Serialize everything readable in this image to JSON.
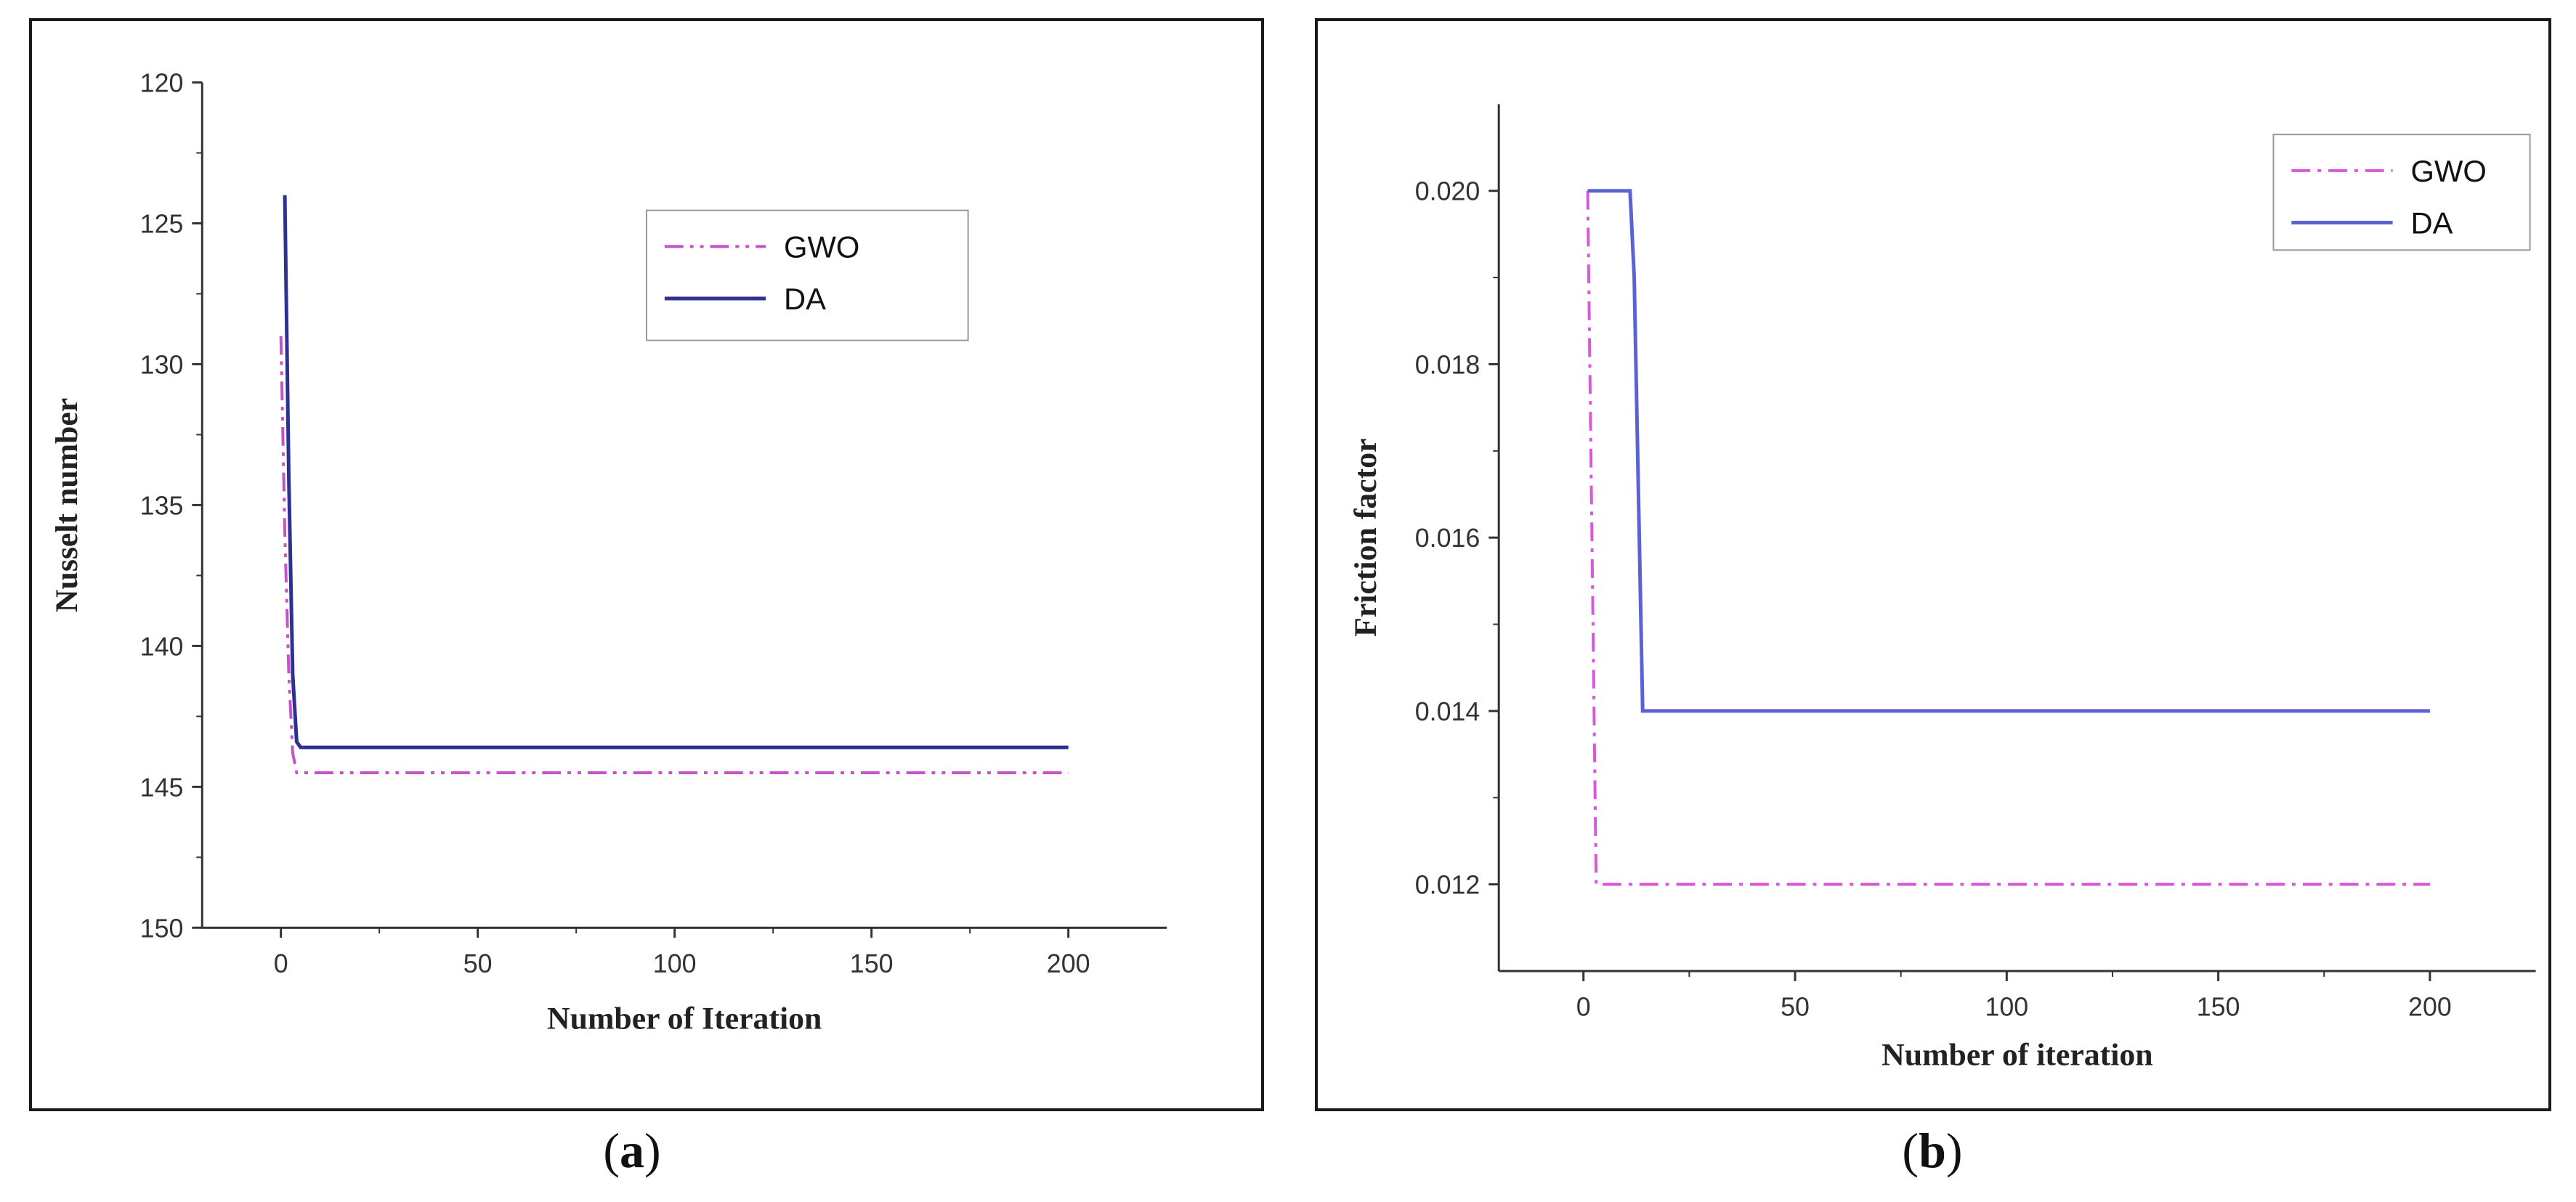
{
  "chart_data": [
    {
      "type": "line",
      "panel_label": "a",
      "title": "",
      "xlabel": "Number of Iteration",
      "ylabel": "Nusselt number",
      "xlim": [
        -20,
        225
      ],
      "ylim": [
        120,
        150
      ],
      "y_inverted": true,
      "x_ticks": [
        0,
        50,
        100,
        150,
        200
      ],
      "y_ticks": [
        120,
        125,
        130,
        135,
        140,
        145,
        150
      ],
      "legend_position": "top-right",
      "series": [
        {
          "name": "GWO",
          "color": "#c552c9",
          "style": "dash-dot-dot",
          "x": [
            0,
            1,
            2,
            3,
            4,
            5,
            200
          ],
          "y": [
            129,
            136,
            141,
            143.8,
            144.5,
            144.5,
            144.5
          ]
        },
        {
          "name": "DA",
          "color": "#2e3192",
          "style": "solid",
          "x": [
            1,
            2,
            3,
            4,
            5,
            200
          ],
          "y": [
            124,
            134,
            141,
            143.4,
            143.6,
            143.6
          ]
        }
      ]
    },
    {
      "type": "line",
      "panel_label": "b",
      "title": "",
      "xlabel": "Number of iteration",
      "ylabel": "Friction factor",
      "xlim": [
        -20,
        225
      ],
      "ylim": [
        0.011,
        0.021
      ],
      "y_inverted": false,
      "x_ticks": [
        0,
        50,
        100,
        150,
        200
      ],
      "y_ticks": [
        0.012,
        0.014,
        0.016,
        0.018,
        0.02
      ],
      "legend_position": "top-right",
      "series": [
        {
          "name": "GWO",
          "color": "#d957d9",
          "style": "dash-dot",
          "x": [
            1,
            2,
            3,
            200
          ],
          "y": [
            0.02,
            0.016,
            0.012,
            0.012
          ]
        },
        {
          "name": "DA",
          "color": "#5a62d6",
          "style": "solid",
          "x": [
            1,
            11,
            12,
            14,
            200
          ],
          "y": [
            0.02,
            0.02,
            0.019,
            0.014,
            0.014
          ]
        }
      ]
    }
  ],
  "captions": [
    {
      "open": "(",
      "letter": "a",
      "close": ")"
    },
    {
      "open": "(",
      "letter": "b",
      "close": ")"
    }
  ]
}
